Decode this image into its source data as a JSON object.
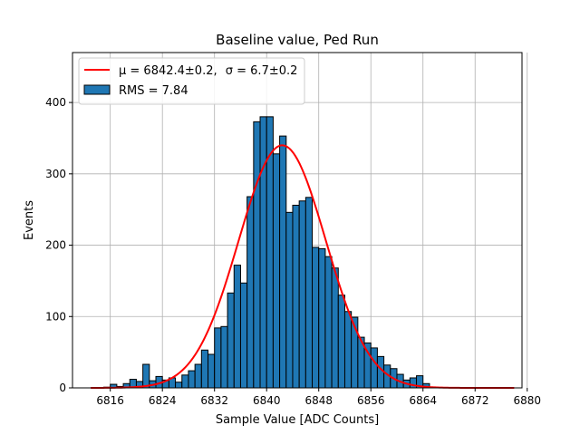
{
  "chart_data": {
    "type": "bar",
    "title": "Baseline value, Ped Run",
    "xlabel": "Sample Value [ADC Counts]",
    "ylabel": "Events",
    "xlim": [
      6810.2,
      6879.2
    ],
    "ylim": [
      0,
      470
    ],
    "xticks": [
      6816,
      6824,
      6832,
      6840,
      6848,
      6856,
      6864,
      6872,
      6880
    ],
    "yticks": [
      0,
      100,
      200,
      300,
      400
    ],
    "grid": true,
    "legend_position": "top-left",
    "histogram": {
      "name": "RMS = 7.84",
      "bin_width": 1,
      "bin_start": 6813,
      "values": [
        0,
        0,
        1,
        5,
        2,
        6,
        12,
        9,
        33,
        10,
        16,
        11,
        14,
        8,
        18,
        24,
        33,
        53,
        47,
        84,
        86,
        133,
        172,
        147,
        268,
        373,
        380,
        380,
        328,
        353,
        246,
        256,
        262,
        267,
        197,
        195,
        184,
        168,
        130,
        107,
        99,
        71,
        63,
        56,
        44,
        32,
        27,
        19,
        11,
        14,
        17,
        6,
        0,
        0,
        0,
        0,
        0,
        0,
        0,
        0,
        0,
        0,
        0,
        0,
        0
      ]
    },
    "fit": {
      "name_mu": "μ = 6842.4±0.2,",
      "name_sigma": "σ = 6.7±0.2",
      "mu": 6842.4,
      "sigma": 6.7,
      "amplitude": 340,
      "x_range": [
        6813,
        6878
      ],
      "color": "#ff0000"
    },
    "legend": {
      "fit_label_mu": "μ = 6842.4±0.2,",
      "fit_label_sigma": "σ = 6.7±0.2",
      "hist_label": "RMS = 7.84"
    },
    "colors": {
      "bar": "#1f77b4",
      "bar_edge": "#000000",
      "grid": "#b0b0b0",
      "fit": "#ff0000"
    }
  }
}
